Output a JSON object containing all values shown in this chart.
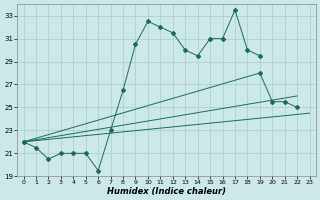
{
  "xlabel": "Humidex (Indice chaleur)",
  "bg_color": "#cce8e8",
  "grid_color": "#aacccc",
  "line_color": "#1a6b5a",
  "xlim": [
    -0.5,
    23.5
  ],
  "ylim": [
    19,
    34
  ],
  "yticks": [
    19,
    21,
    23,
    25,
    27,
    29,
    31,
    33
  ],
  "xticks": [
    0,
    1,
    2,
    3,
    4,
    5,
    6,
    7,
    8,
    9,
    10,
    11,
    12,
    13,
    14,
    15,
    16,
    17,
    18,
    19,
    20,
    21,
    22,
    23
  ],
  "line1_x": [
    0,
    1,
    2,
    3,
    4,
    5,
    6,
    7,
    8,
    9,
    10,
    11,
    12,
    13,
    14,
    15,
    16,
    17,
    18,
    19
  ],
  "line1_y": [
    22.0,
    21.5,
    20.5,
    21.0,
    21.0,
    21.0,
    19.5,
    23.0,
    26.5,
    30.5,
    32.5,
    32.0,
    31.5,
    30.0,
    29.5,
    31.0,
    31.0,
    33.5,
    30.0,
    29.5
  ],
  "line2_x": [
    0,
    19,
    20,
    21,
    22
  ],
  "line2_y": [
    22.0,
    28.0,
    25.5,
    25.5,
    25.0
  ],
  "line3_x": [
    0,
    22
  ],
  "line3_y": [
    22.0,
    26.0
  ],
  "line4_x": [
    0,
    23
  ],
  "line4_y": [
    22.0,
    24.5
  ]
}
